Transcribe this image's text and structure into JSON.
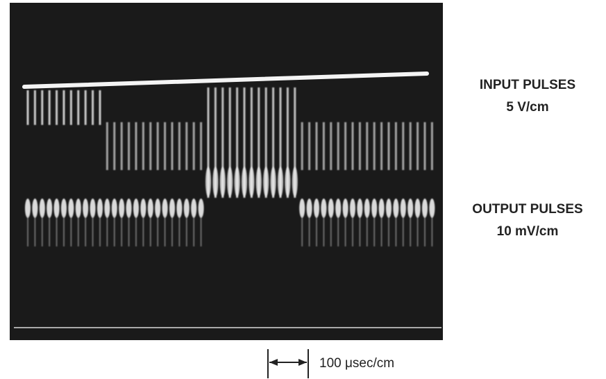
{
  "input_label": {
    "title": "INPUT PULSES",
    "scale": "5 V/cm"
  },
  "output_label": {
    "title": "OUTPUT PULSES",
    "scale": "10 mV/cm"
  },
  "time_scale": "100 μsec/cm"
}
